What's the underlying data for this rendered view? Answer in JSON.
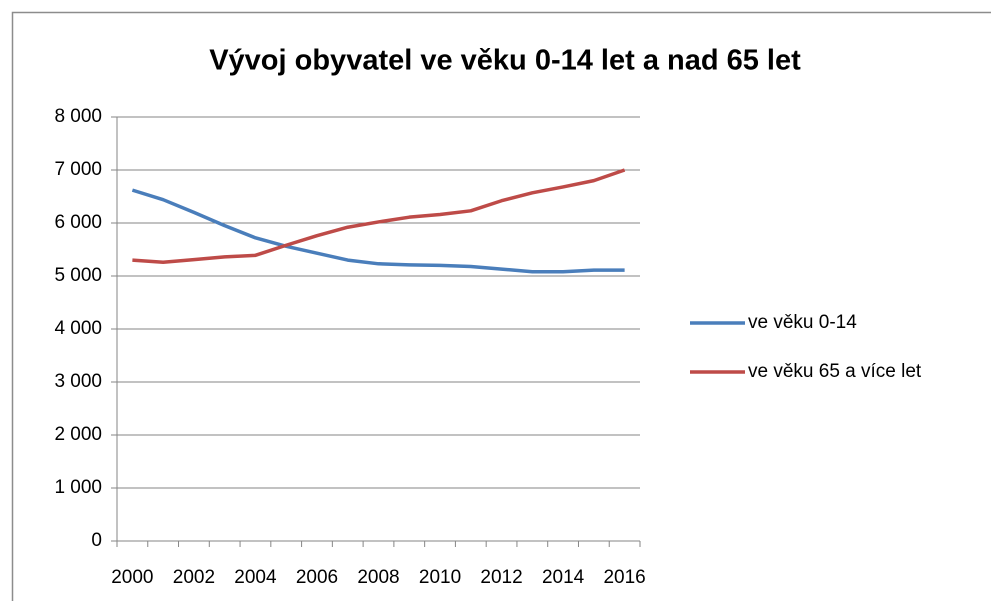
{
  "chart_data": {
    "type": "line",
    "title": "Vývoj obyvatel ve věku 0-14 let a nad 65 let",
    "categories": [
      "2000",
      null,
      "2002",
      null,
      "2004",
      null,
      "2006",
      null,
      "2008",
      null,
      "2010",
      null,
      "2012",
      null,
      "2014",
      null,
      "2016"
    ],
    "series": [
      {
        "name": "ve věku 0-14",
        "color": "#4a7ebb",
        "values": [
          6620,
          6440,
          6200,
          5950,
          5720,
          5560,
          5430,
          5300,
          5230,
          5210,
          5200,
          5180,
          5130,
          5080,
          5080,
          5110,
          5110
        ]
      },
      {
        "name": "ve věku 65 a více let",
        "color": "#be4b48",
        "values": [
          5300,
          5260,
          5310,
          5360,
          5390,
          5580,
          5760,
          5920,
          6020,
          6110,
          6160,
          6230,
          6420,
          6570,
          6680,
          6800,
          7000
        ]
      }
    ],
    "ylim": [
      0,
      8000
    ],
    "yticks": [
      0,
      {
        "value": 1000,
        "label": "1 000"
      },
      {
        "value": 2000,
        "label": "2 000"
      },
      {
        "value": 3000,
        "label": "3 000"
      },
      {
        "value": 4000,
        "label": "4 000"
      },
      {
        "value": 5000,
        "label": "5 000"
      },
      {
        "value": 6000,
        "label": "6 000"
      },
      {
        "value": 7000,
        "label": "7 000"
      },
      {
        "value": 8000,
        "label": "8 000"
      }
    ],
    "grid": true,
    "legend": "right"
  }
}
